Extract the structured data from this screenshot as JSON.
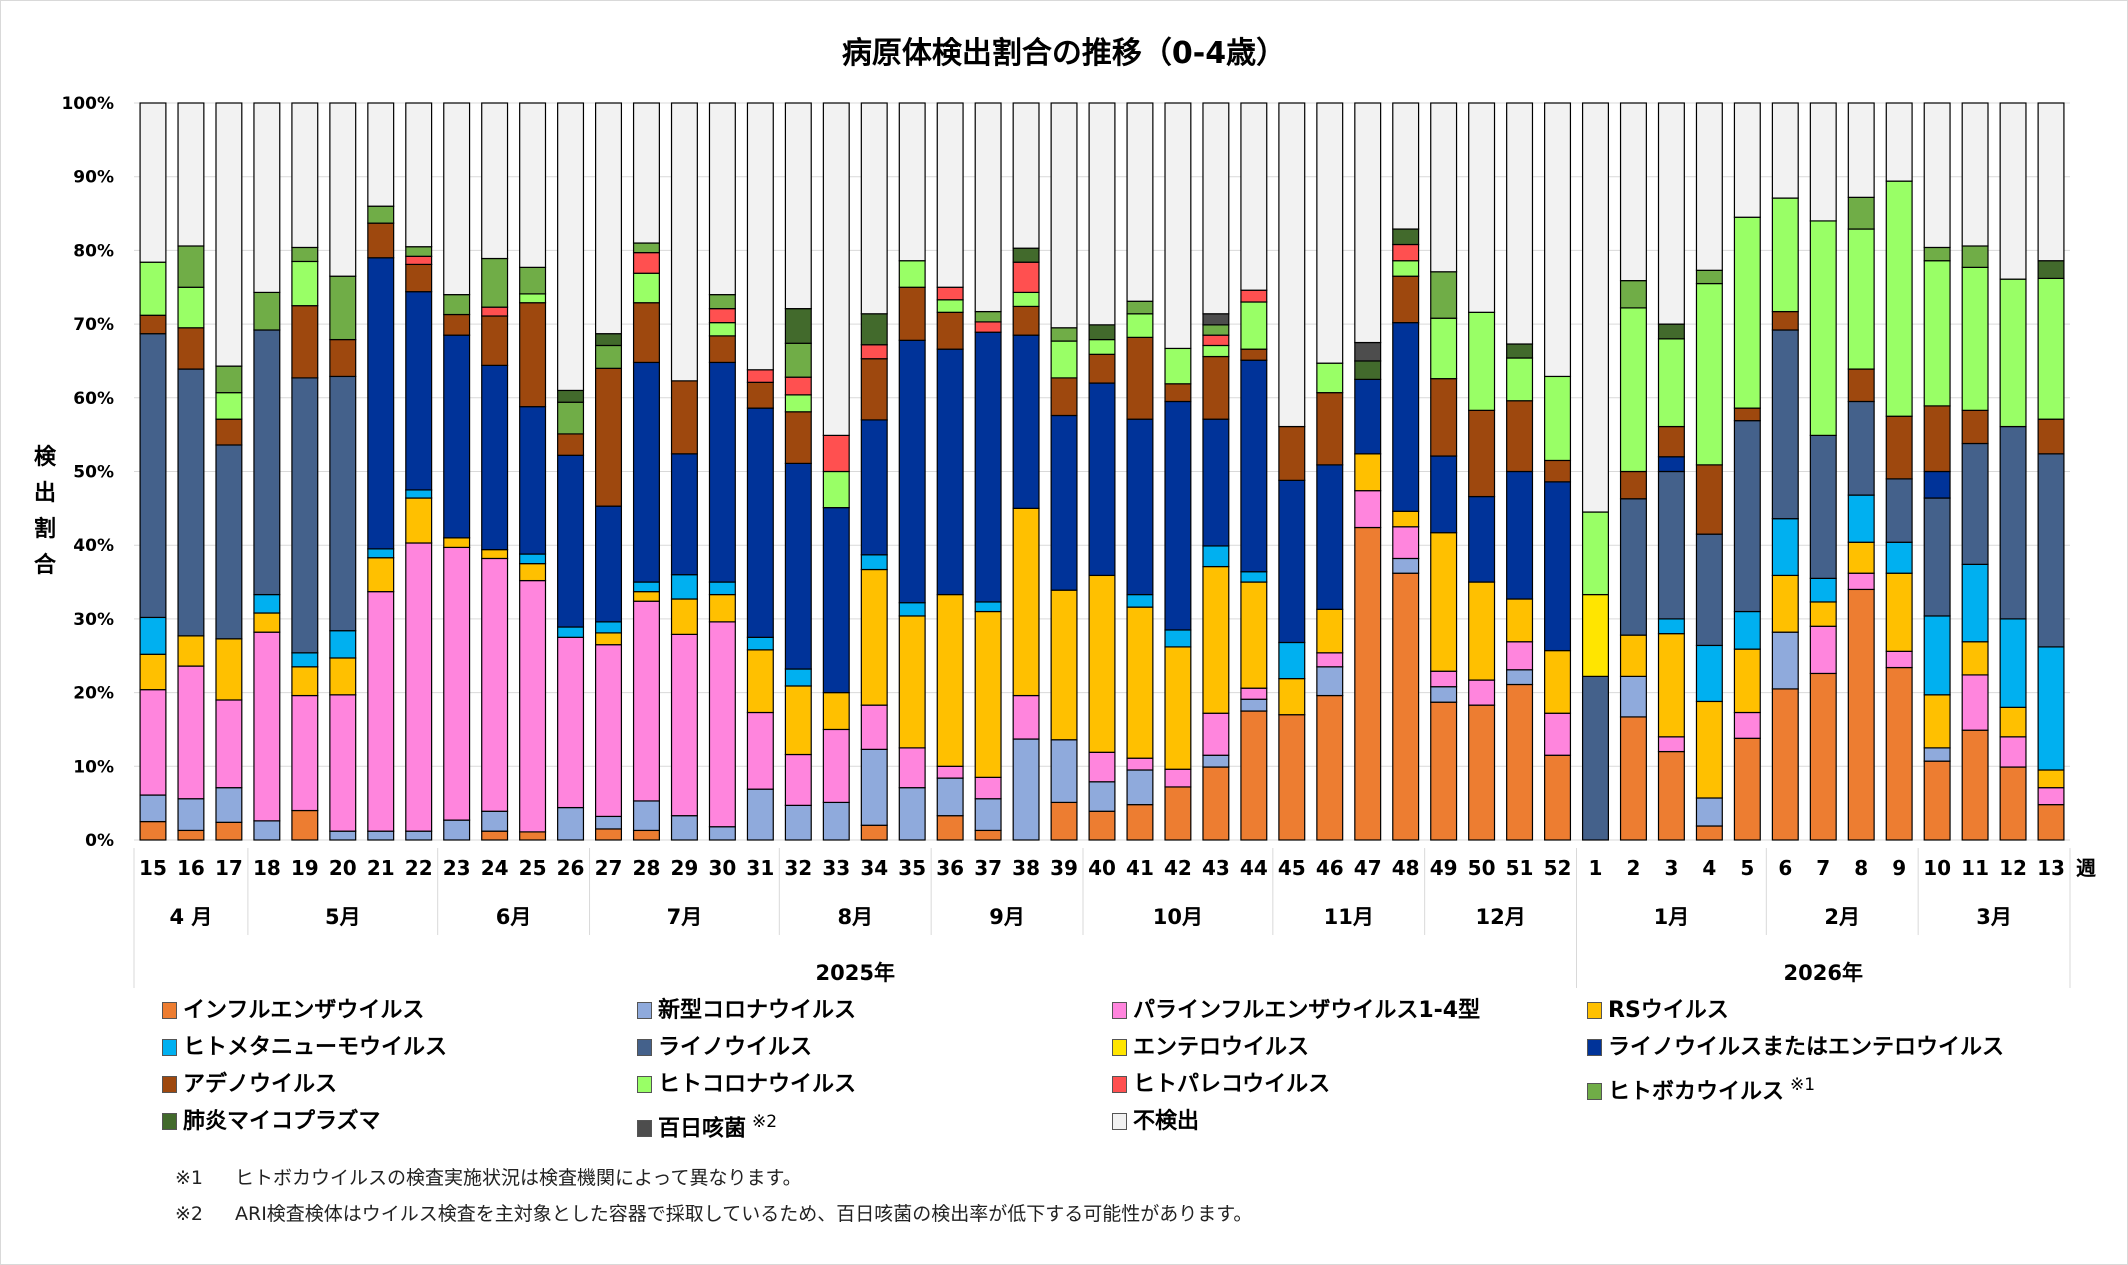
{
  "chart_data": {
    "type": "bar",
    "stacked": true,
    "title": "病原体検出割合の推移（0-4歳）",
    "ylabel": "検出割合",
    "xlabel": "週",
    "ylim": [
      0,
      100
    ],
    "yticks": [
      "0%",
      "10%",
      "20%",
      "30%",
      "40%",
      "50%",
      "60%",
      "70%",
      "80%",
      "90%",
      "100%"
    ],
    "grid": true,
    "legend_position": "bottom",
    "categories": [
      "15",
      "16",
      "17",
      "18",
      "19",
      "20",
      "21",
      "22",
      "23",
      "24",
      "25",
      "26",
      "27",
      "28",
      "29",
      "30",
      "31",
      "32",
      "33",
      "34",
      "35",
      "36",
      "37",
      "38",
      "39",
      "40",
      "41",
      "42",
      "43",
      "44",
      "45",
      "46",
      "47",
      "48",
      "49",
      "50",
      "51",
      "52",
      "1",
      "2",
      "3",
      "4",
      "5",
      "6",
      "7",
      "8",
      "9",
      "10",
      "11",
      "12",
      "13"
    ],
    "months": [
      {
        "label": "4 月",
        "weeks": 3
      },
      {
        "label": "5月",
        "weeks": 5
      },
      {
        "label": "6月",
        "weeks": 4
      },
      {
        "label": "7月",
        "weeks": 5
      },
      {
        "label": "8月",
        "weeks": 4
      },
      {
        "label": "9月",
        "weeks": 4
      },
      {
        "label": "10月",
        "weeks": 5
      },
      {
        "label": "11月",
        "weeks": 4
      },
      {
        "label": "12月",
        "weeks": 4
      },
      {
        "label": "1月",
        "weeks": 5
      },
      {
        "label": "2月",
        "weeks": 4
      },
      {
        "label": "3月",
        "weeks": 4
      }
    ],
    "years": [
      {
        "label": "2025年",
        "weeks": 38
      },
      {
        "label": "2026年",
        "weeks": 13
      }
    ],
    "series": [
      {
        "name": "インフルエンザウイルス",
        "color": "#ed7d31",
        "values": [
          2.5,
          1.3,
          2.4,
          0,
          4.0,
          0,
          0,
          0,
          0,
          1.2,
          1.1,
          0,
          1.5,
          1.3,
          0,
          0,
          0,
          0,
          0,
          2.0,
          0,
          3.3,
          1.3,
          0,
          5.1,
          3.9,
          4.8,
          7.2,
          9.9,
          17.5,
          17.0,
          19.6,
          42.4,
          36.2,
          18.7,
          18.3,
          21.1,
          11.5,
          0,
          16.7,
          12.0,
          1.9,
          13.8,
          20.5,
          22.6,
          34.0,
          23.4,
          10.7,
          14.9,
          9.9,
          4.8
        ]
      },
      {
        "name": "新型コロナウイルス",
        "color": "#8faadc",
        "values": [
          3.6,
          4.3,
          4.7,
          2.6,
          0,
          1.2,
          1.2,
          1.2,
          2.7,
          2.7,
          0,
          4.4,
          1.7,
          4.0,
          3.3,
          1.8,
          6.9,
          4.7,
          5.1,
          10.3,
          7.1,
          5.1,
          4.3,
          13.7,
          8.5,
          4.0,
          4.7,
          0,
          1.6,
          1.6,
          0,
          3.9,
          0,
          2.0,
          2.1,
          0,
          2.0,
          0,
          0,
          5.5,
          0,
          3.8,
          0,
          7.7,
          0,
          0,
          0,
          1.8,
          0,
          0,
          0
        ]
      },
      {
        "name": "パラインフルエンザウイルス1-4型",
        "color": "#ff85dd",
        "values": [
          14.3,
          18.0,
          11.9,
          25.6,
          15.6,
          18.5,
          32.5,
          39.1,
          37.0,
          34.3,
          34.1,
          23.1,
          23.3,
          27.1,
          24.6,
          27.8,
          10.4,
          6.9,
          9.9,
          6.0,
          5.4,
          1.6,
          2.9,
          5.9,
          0,
          4.0,
          1.6,
          2.4,
          5.7,
          1.5,
          0,
          1.9,
          5.0,
          4.3,
          2.1,
          3.4,
          3.8,
          5.7,
          0,
          0,
          2.0,
          0,
          3.5,
          0,
          6.4,
          2.2,
          2.2,
          0,
          7.5,
          4.1,
          2.3
        ]
      },
      {
        "name": "RSウイルス",
        "color": "#ffc000",
        "values": [
          4.8,
          4.1,
          8.3,
          2.6,
          3.9,
          5.0,
          4.6,
          6.1,
          1.3,
          1.2,
          2.3,
          0,
          1.6,
          1.3,
          4.8,
          3.7,
          8.5,
          9.3,
          5.0,
          18.4,
          17.9,
          23.3,
          22.5,
          25.4,
          20.3,
          24.0,
          20.5,
          16.6,
          19.9,
          14.4,
          4.9,
          5.9,
          5.0,
          2.1,
          18.8,
          13.3,
          5.8,
          8.5,
          0,
          5.6,
          14.0,
          13.1,
          8.6,
          7.7,
          3.3,
          4.2,
          10.6,
          7.2,
          4.5,
          4.0,
          2.4
        ]
      },
      {
        "name": "ヒトメタニューモウイルス",
        "color": "#00b0f0",
        "values": [
          5.0,
          0,
          0,
          2.5,
          1.9,
          3.7,
          1.2,
          1.1,
          0,
          0,
          1.3,
          1.4,
          1.5,
          1.3,
          3.3,
          1.7,
          1.7,
          2.3,
          0,
          2.0,
          1.8,
          0,
          1.3,
          0,
          0,
          0,
          1.7,
          2.3,
          2.8,
          1.4,
          4.9,
          0,
          0,
          0,
          0,
          0,
          0,
          0,
          0,
          0,
          2.0,
          7.6,
          5.1,
          7.7,
          3.2,
          6.4,
          4.2,
          10.7,
          10.5,
          12.0,
          16.7
        ]
      },
      {
        "name": "ライノウイルス",
        "color": "#44618b",
        "values": [
          38.5,
          36.2,
          26.3,
          35.9,
          37.3,
          34.5,
          0,
          0,
          0,
          0,
          0,
          0,
          0,
          0,
          0,
          0,
          0,
          0,
          0,
          0,
          0,
          0,
          0,
          0,
          0,
          0,
          0,
          0,
          0,
          0,
          0,
          0,
          0,
          0,
          0,
          0,
          0,
          0,
          22.2,
          18.5,
          20.0,
          15.1,
          25.9,
          25.6,
          19.4,
          12.7,
          8.6,
          16.0,
          16.4,
          26.1,
          26.2
        ]
      },
      {
        "name": "エンテロウイルス",
        "color": "#ffe500",
        "values": [
          0,
          0,
          0,
          0,
          0,
          0,
          0,
          0,
          0,
          0,
          0,
          0,
          0,
          0,
          0,
          0,
          0,
          0,
          0,
          0,
          0,
          0,
          0,
          0,
          0,
          0,
          0,
          0,
          0,
          0,
          0,
          0,
          0,
          0,
          0,
          0,
          0,
          0,
          11.1,
          0,
          0,
          0,
          0,
          0,
          0,
          0,
          0,
          0,
          0,
          0,
          0
        ]
      },
      {
        "name": "ライノウイルスまたはエンテロウイルス",
        "color": "#003399",
        "values": [
          0,
          0,
          0,
          0,
          0,
          0,
          39.5,
          26.9,
          27.5,
          25.0,
          20.0,
          23.3,
          15.7,
          29.8,
          16.4,
          29.8,
          31.1,
          27.9,
          25.1,
          18.3,
          35.6,
          33.3,
          36.6,
          23.5,
          23.7,
          26.1,
          23.8,
          31.0,
          17.2,
          28.7,
          22.0,
          19.6,
          10.1,
          25.6,
          10.4,
          11.6,
          17.3,
          22.9,
          0,
          0,
          2.0,
          0,
          0,
          0,
          0,
          0,
          0,
          3.6,
          0,
          0,
          0
        ]
      },
      {
        "name": "アデノウイルス",
        "color": "#9e480e",
        "values": [
          2.5,
          5.6,
          3.5,
          0,
          9.8,
          5.0,
          4.7,
          3.7,
          2.8,
          6.7,
          14.1,
          2.9,
          18.7,
          8.1,
          9.9,
          3.6,
          3.5,
          7.0,
          0,
          8.3,
          7.2,
          5.0,
          0,
          3.9,
          5.1,
          3.9,
          11.1,
          2.4,
          8.5,
          1.5,
          7.3,
          9.8,
          0,
          6.3,
          10.5,
          11.7,
          9.6,
          2.9,
          0,
          3.7,
          4.1,
          9.4,
          1.7,
          2.5,
          0,
          4.4,
          8.5,
          8.9,
          4.5,
          0,
          4.7
        ]
      },
      {
        "name": "ヒトコロナウイルス",
        "color": "#99ff66",
        "values": [
          7.2,
          5.5,
          3.6,
          0,
          6.0,
          0,
          0,
          0,
          0,
          0,
          1.2,
          0,
          0,
          4.0,
          0,
          1.8,
          0,
          2.3,
          4.9,
          0,
          3.6,
          1.7,
          0,
          1.9,
          5.0,
          2.0,
          3.2,
          4.8,
          1.5,
          6.4,
          0,
          4.0,
          0,
          2.1,
          8.2,
          13.3,
          5.8,
          11.4,
          11.2,
          22.2,
          11.9,
          24.6,
          25.9,
          15.4,
          29.1,
          19.0,
          31.9,
          19.7,
          19.4,
          20.0,
          19.1
        ]
      },
      {
        "name": "ヒトパレコウイルス",
        "color": "#ff5050",
        "values": [
          0,
          0,
          0,
          0,
          0,
          0,
          0,
          1.1,
          0,
          1.2,
          0,
          0,
          0,
          2.8,
          0,
          1.9,
          1.7,
          2.4,
          4.9,
          1.9,
          0,
          1.7,
          1.4,
          4.1,
          0,
          0,
          0,
          0,
          1.4,
          1.6,
          0,
          0,
          0,
          2.2,
          0,
          0,
          0,
          0,
          0,
          0,
          0,
          0,
          0,
          0,
          0,
          0,
          0,
          0,
          0,
          0,
          0
        ]
      },
      {
        "name": "ヒトボカウイルス",
        "color": "#70ad47",
        "note": "※1",
        "values": [
          0,
          5.6,
          3.6,
          5.1,
          1.9,
          8.6,
          2.3,
          1.3,
          2.7,
          6.6,
          3.6,
          4.3,
          3.1,
          1.3,
          0,
          1.9,
          0,
          4.6,
          0,
          0,
          0,
          0,
          1.4,
          0,
          1.8,
          0,
          1.7,
          0,
          1.4,
          0,
          0,
          0,
          0,
          0,
          6.3,
          0,
          0,
          0,
          0,
          3.7,
          0,
          1.8,
          0,
          0,
          0,
          4.3,
          0,
          1.8,
          2.9,
          0,
          0
        ]
      },
      {
        "name": "肺炎マイコプラズマ",
        "color": "#426a2c",
        "values": [
          0,
          0,
          0,
          0,
          0,
          0,
          0,
          0,
          0,
          0,
          0,
          1.6,
          1.6,
          0,
          0,
          0,
          0,
          4.7,
          0,
          4.2,
          0,
          0,
          0,
          1.9,
          0,
          2.0,
          0,
          0,
          0,
          0,
          0,
          0,
          2.5,
          2.1,
          0,
          0,
          1.9,
          0,
          0,
          0,
          2.0,
          0,
          0,
          0,
          0,
          0,
          0,
          0,
          0,
          0,
          2.4
        ]
      },
      {
        "name": "百日咳菌",
        "color": "#4d4d4d",
        "note": "※2",
        "values": [
          0,
          0,
          0,
          0,
          0,
          0,
          0,
          0,
          0,
          0,
          0,
          0,
          0,
          0,
          0,
          0,
          0,
          0,
          0,
          0,
          0,
          0,
          0,
          0,
          0,
          0,
          0,
          0,
          1.5,
          0,
          0,
          0,
          2.5,
          0,
          0,
          0,
          0,
          0,
          0,
          0,
          0,
          0,
          0,
          0,
          0,
          0,
          0,
          0,
          0,
          0,
          0
        ]
      },
      {
        "name": "不検出",
        "color": "#f2f2f2",
        "values": [
          21.6,
          19.4,
          35.7,
          25.7,
          19.6,
          23.5,
          14.0,
          19.5,
          26.0,
          21.1,
          22.3,
          39.0,
          31.3,
          19.0,
          37.7,
          26.0,
          36.2,
          27.9,
          45.1,
          28.6,
          21.4,
          25.0,
          28.3,
          19.7,
          30.5,
          30.1,
          26.9,
          33.3,
          28.6,
          25.4,
          43.9,
          35.3,
          32.5,
          17.1,
          22.9,
          28.4,
          32.7,
          37.1,
          55.5,
          24.1,
          30.0,
          22.7,
          15.5,
          12.9,
          16.0,
          12.8,
          10.6,
          19.6,
          19.4,
          23.9,
          21.4
        ]
      }
    ]
  },
  "legend_note_labels": {
    "n1": "※1",
    "n2": "※2"
  },
  "footnotes": [
    {
      "mark": "※1",
      "text": "ヒトボカウイルスの検査実施状況は検査機関によって異なります。"
    },
    {
      "mark": "※2",
      "text": "ARI検査検体はウイルス検査を主対象とした容器で採取しているため、百日咳菌の検出率が低下する可能性があります。"
    }
  ]
}
